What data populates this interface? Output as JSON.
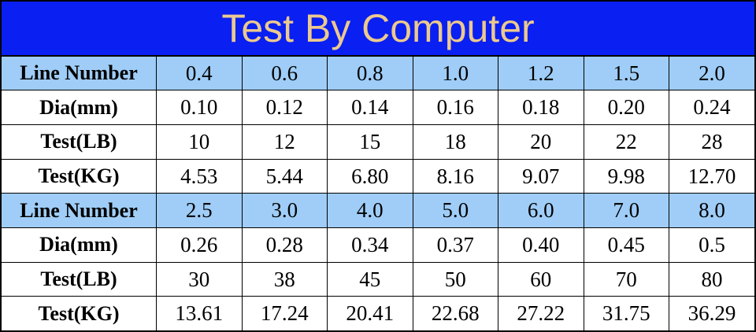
{
  "title": "Test By Computer",
  "table": {
    "rows": [
      [
        "Line Number",
        "0.4",
        "0.6",
        "0.8",
        "1.0",
        "1.2",
        "1.5",
        "2.0"
      ],
      [
        "Dia(mm)",
        "0.10",
        "0.12",
        "0.14",
        "0.16",
        "0.18",
        "0.20",
        "0.24"
      ],
      [
        "Test(LB)",
        "10",
        "12",
        "15",
        "18",
        "20",
        "22",
        "28"
      ],
      [
        "Test(KG)",
        "4.53",
        "5.44",
        "6.80",
        "8.16",
        "9.07",
        "9.98",
        "12.70"
      ],
      [
        "Line Number",
        "2.5",
        "3.0",
        "4.0",
        "5.0",
        "6.0",
        "7.0",
        "8.0"
      ],
      [
        "Dia(mm)",
        "0.26",
        "0.28",
        "0.34",
        "0.37",
        "0.40",
        "0.45",
        "0.5"
      ],
      [
        "Test(LB)",
        "30",
        "38",
        "45",
        "50",
        "60",
        "70",
        "80"
      ],
      [
        "Test(KG)",
        "13.61",
        "17.24",
        "20.41",
        "22.68",
        "27.22",
        "31.75",
        "36.29"
      ]
    ]
  }
}
